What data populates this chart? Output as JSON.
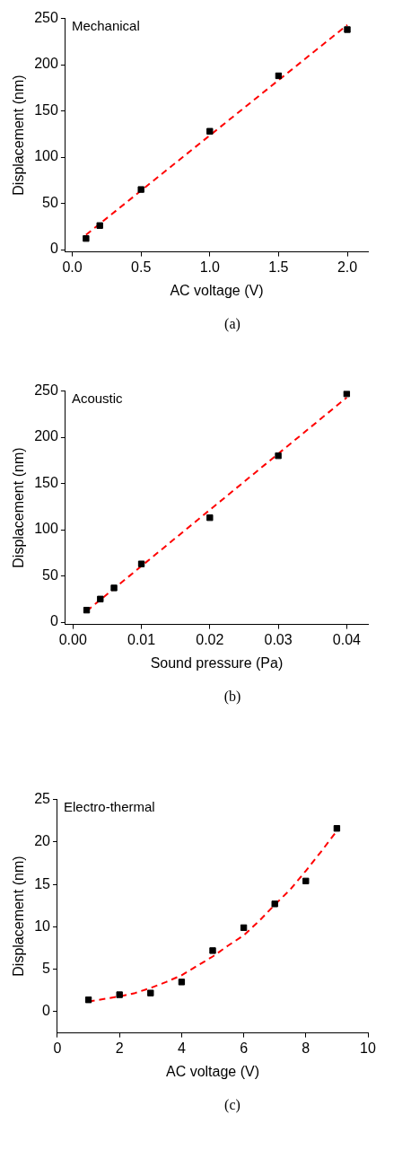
{
  "chart_data": [
    {
      "type": "scatter",
      "xlabel": "AC voltage (V)",
      "ylabel": "Displacement (nm)",
      "annotations": [
        "Mechanical",
        "(a)"
      ],
      "xlim": [
        -0.05,
        2.15
      ],
      "xticks": [
        {
          "value": 0,
          "label": "0.0"
        },
        {
          "value": 0.5,
          "label": "0.5"
        },
        {
          "value": 1,
          "label": "1.0"
        },
        {
          "value": 1.5,
          "label": "1.5"
        },
        {
          "value": 2,
          "label": "2.0"
        }
      ],
      "ylim": [
        -2.5,
        250
      ],
      "yticks": [
        0,
        50,
        100,
        150,
        200,
        250
      ],
      "legend": false,
      "series": [
        {
          "color": "#000000",
          "marker": "square",
          "x": [
            0.1,
            0.2,
            0.5,
            1.0,
            1.5,
            2.0
          ],
          "values": [
            12,
            26,
            65,
            128,
            188,
            238
          ]
        },
        {
          "type": "line",
          "color": "#ff0000",
          "marker": "none",
          "line_style": "dashed",
          "x": [
            0.1,
            2.0
          ],
          "values": [
            16,
            243
          ]
        }
      ]
    },
    {
      "type": "scatter",
      "xlabel": "Sound pressure (Pa)",
      "ylabel": "Displacement (nm)",
      "annotations": [
        "Acoustic",
        "(b)"
      ],
      "xlim": [
        -0.0011,
        0.0431
      ],
      "xticks": [
        {
          "value": 0,
          "label": "0.00"
        },
        {
          "value": 0.01,
          "label": "0.01"
        },
        {
          "value": 0.02,
          "label": "0.02"
        },
        {
          "value": 0.03,
          "label": "0.03"
        },
        {
          "value": 0.04,
          "label": "0.04"
        }
      ],
      "ylim": [
        -2.5,
        250
      ],
      "yticks": [
        0,
        50,
        100,
        150,
        200,
        250
      ],
      "legend": false,
      "series": [
        {
          "color": "#000000",
          "marker": "square",
          "x": [
            0.002,
            0.004,
            0.006,
            0.01,
            0.02,
            0.03,
            0.04
          ],
          "values": [
            13,
            25,
            37,
            63,
            113,
            180,
            247
          ]
        },
        {
          "type": "line",
          "color": "#ff0000",
          "marker": "none",
          "line_style": "dashed",
          "x": [
            0.002,
            0.04
          ],
          "values": [
            12,
            243
          ]
        }
      ]
    },
    {
      "type": "scatter",
      "xlabel": "AC voltage (V)",
      "ylabel": "Displacement (nm)",
      "annotations": [
        "Electro-thermal",
        "(c)"
      ],
      "xlim": [
        0,
        10
      ],
      "xticks": [
        0,
        2,
        4,
        6,
        8,
        10
      ],
      "ylim": [
        -2.5,
        25
      ],
      "yticks": [
        0,
        5,
        10,
        15,
        20,
        25
      ],
      "legend": false,
      "series": [
        {
          "color": "#000000",
          "marker": "square",
          "x": [
            1,
            2,
            3,
            4,
            5,
            6,
            7,
            8,
            9
          ],
          "values": [
            1.4,
            2.0,
            2.2,
            3.5,
            7.2,
            9.9,
            12.7,
            15.4,
            21.6
          ]
        },
        {
          "type": "line",
          "color": "#ff0000",
          "marker": "none",
          "line_style": "dashed",
          "x": [
            1,
            1.5,
            2,
            2.5,
            3,
            3.5,
            4,
            4.5,
            5,
            5.5,
            6,
            6.5,
            7,
            7.5,
            8,
            8.5,
            9
          ],
          "values": [
            1.2,
            1.5,
            1.8,
            2.2,
            2.8,
            3.5,
            4.3,
            5.4,
            6.5,
            7.8,
            9.0,
            10.7,
            12.6,
            14.4,
            16.6,
            18.9,
            21.3
          ]
        }
      ]
    }
  ]
}
